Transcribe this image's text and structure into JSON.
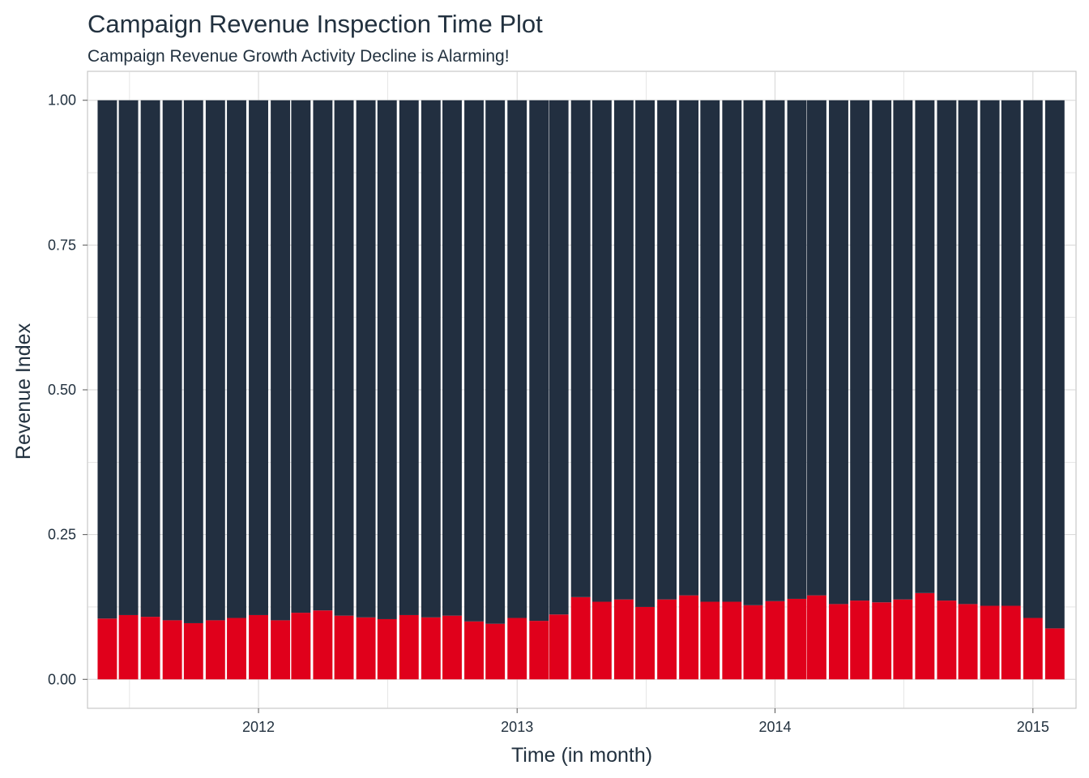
{
  "chart_data": {
    "type": "bar",
    "stacked": true,
    "title": "Campaign Revenue Inspection Time Plot",
    "subtitle": "Campaign Revenue Growth Activity Decline is Alarming!",
    "xlabel": "Time (in month)",
    "ylabel": "Revenue Index",
    "ylim": [
      -0.05,
      1.05
    ],
    "yticks": [
      0.0,
      0.25,
      0.5,
      0.75,
      1.0
    ],
    "ytick_labels": [
      "0.00",
      "0.25",
      "0.50",
      "0.75",
      "1.00"
    ],
    "xticks": [
      "2012",
      "2013",
      "2014",
      "2015"
    ],
    "x_range": [
      "2011-05-04",
      "2015-03-03"
    ],
    "grid": true,
    "legend": "none",
    "colors": {
      "bottom": "#e0001b",
      "top": "#222f40",
      "grid": "#d6d6d6",
      "text": "#22313f"
    },
    "x": [
      "2011-06",
      "2011-07",
      "2011-08",
      "2011-09",
      "2011-10",
      "2011-11",
      "2011-12",
      "2012-01",
      "2012-02",
      "2012-03",
      "2012-04",
      "2012-05",
      "2012-06",
      "2012-07",
      "2012-08",
      "2012-09",
      "2012-10",
      "2012-11",
      "2012-12",
      "2013-01",
      "2013-02",
      "2013-03",
      "2013-04",
      "2013-05",
      "2013-06",
      "2013-07",
      "2013-08",
      "2013-09",
      "2013-10",
      "2013-11",
      "2013-12",
      "2014-01",
      "2014-02",
      "2014-03",
      "2014-04",
      "2014-05",
      "2014-06",
      "2014-07",
      "2014-08",
      "2014-09",
      "2014-10",
      "2014-11",
      "2014-12",
      "2015-01",
      "2015-02"
    ],
    "series": [
      {
        "values": [
          0.105,
          0.111,
          0.108,
          0.102,
          0.097,
          0.102,
          0.106,
          0.111,
          0.102,
          0.115,
          0.119,
          0.11,
          0.107,
          0.104,
          0.111,
          0.107,
          0.11,
          0.1,
          0.096,
          0.106,
          0.101,
          0.112,
          0.142,
          0.134,
          0.138,
          0.125,
          0.138,
          0.145,
          0.134,
          0.134,
          0.128,
          0.135,
          0.139,
          0.145,
          0.13,
          0.136,
          0.133,
          0.138,
          0.149,
          0.136,
          0.13,
          0.127,
          0.127,
          0.106,
          0.088
        ]
      },
      {
        "values": [
          0.895,
          0.889,
          0.892,
          0.898,
          0.903,
          0.898,
          0.894,
          0.889,
          0.898,
          0.885,
          0.881,
          0.89,
          0.893,
          0.896,
          0.889,
          0.893,
          0.89,
          0.9,
          0.904,
          0.894,
          0.899,
          0.888,
          0.858,
          0.866,
          0.862,
          0.875,
          0.862,
          0.855,
          0.866,
          0.866,
          0.872,
          0.865,
          0.861,
          0.855,
          0.87,
          0.864,
          0.867,
          0.862,
          0.851,
          0.864,
          0.87,
          0.873,
          0.873,
          0.894,
          0.912
        ]
      }
    ]
  }
}
